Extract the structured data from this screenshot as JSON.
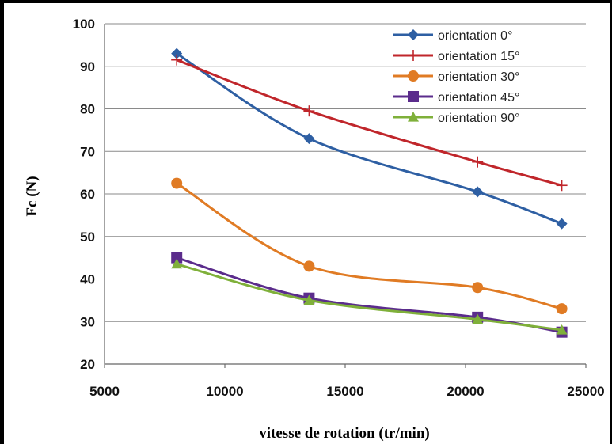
{
  "chart_data": {
    "type": "line",
    "title": "",
    "xlabel": "vitesse de rotation (tr/min)",
    "ylabel": "Fc (N)",
    "xlim": [
      5000,
      25000
    ],
    "ylim": [
      20,
      100
    ],
    "x_ticks": [
      "5000",
      "10000",
      "15000",
      "20000",
      "25000"
    ],
    "y_ticks": [
      "20",
      "30",
      "40",
      "50",
      "60",
      "70",
      "80",
      "90",
      "100"
    ],
    "grid": "horizontal",
    "legend_position": "top-right",
    "x": [
      8000,
      13500,
      20500,
      24000
    ],
    "series": [
      {
        "name": "orientation 0°",
        "values": [
          93,
          73,
          60.5,
          53
        ],
        "color": "#2E5FA3",
        "marker": "diamond"
      },
      {
        "name": "orientation 15°",
        "values": [
          91.5,
          79.5,
          67.5,
          62
        ],
        "color": "#C0262B",
        "marker": "plus"
      },
      {
        "name": "orientation 30°",
        "values": [
          62.5,
          43,
          38,
          33
        ],
        "color": "#E07B24",
        "marker": "circle"
      },
      {
        "name": "orientation 45°",
        "values": [
          45,
          35.5,
          31,
          27.5
        ],
        "color": "#5B2C8C",
        "marker": "square"
      },
      {
        "name": "orientation 90°",
        "values": [
          43.5,
          35,
          30.5,
          28
        ],
        "color": "#7FB03A",
        "marker": "triangle"
      }
    ]
  }
}
